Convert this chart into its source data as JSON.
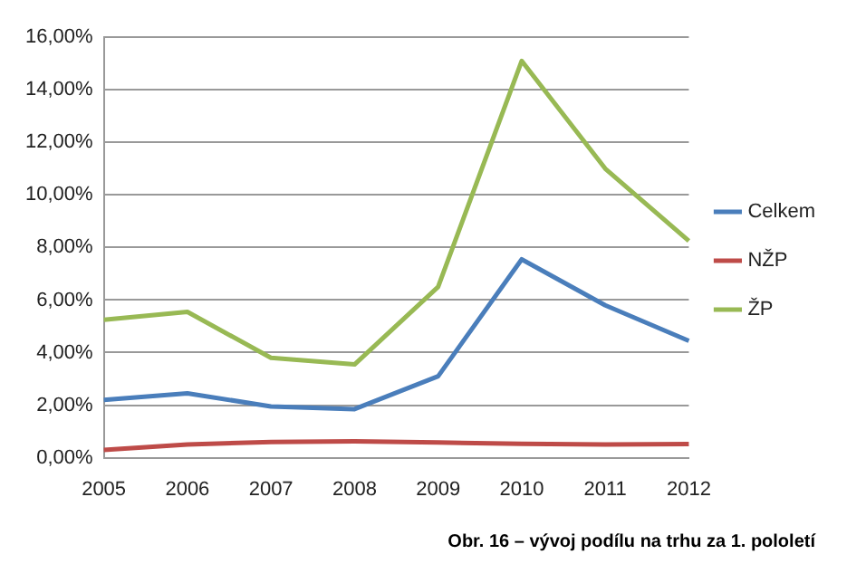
{
  "chart_data": {
    "type": "line",
    "categories": [
      "2005",
      "2006",
      "2007",
      "2008",
      "2009",
      "2010",
      "2011",
      "2012"
    ],
    "series": [
      {
        "name": "Celkem",
        "color": "#4a7ebb",
        "values": [
          2.2,
          2.45,
          1.95,
          1.85,
          3.1,
          7.55,
          5.8,
          4.45
        ]
      },
      {
        "name": "NŽP",
        "color": "#be4b48",
        "values": [
          0.3,
          0.5,
          0.6,
          0.62,
          0.58,
          0.53,
          0.5,
          0.52
        ]
      },
      {
        "name": "ŽP",
        "color": "#98b954",
        "values": [
          5.25,
          5.55,
          3.8,
          3.55,
          6.5,
          15.1,
          11.0,
          8.25
        ]
      }
    ],
    "ylim": [
      0,
      16
    ],
    "yticks": [
      {
        "value": 0,
        "label": "0,00%"
      },
      {
        "value": 2,
        "label": "2,00%"
      },
      {
        "value": 4,
        "label": "4,00%"
      },
      {
        "value": 6,
        "label": "6,00%"
      },
      {
        "value": 8,
        "label": "8,00%"
      },
      {
        "value": 10,
        "label": "10,00%"
      },
      {
        "value": 12,
        "label": "12,00%"
      },
      {
        "value": 14,
        "label": "14,00%"
      },
      {
        "value": 16,
        "label": "16,00%"
      }
    ],
    "grid": "y",
    "legend": "right",
    "marker": "none",
    "line_style": "solid",
    "annotations": [
      "Obr. 16 – vývoj podílu na trhu za 1. pololetí"
    ]
  }
}
